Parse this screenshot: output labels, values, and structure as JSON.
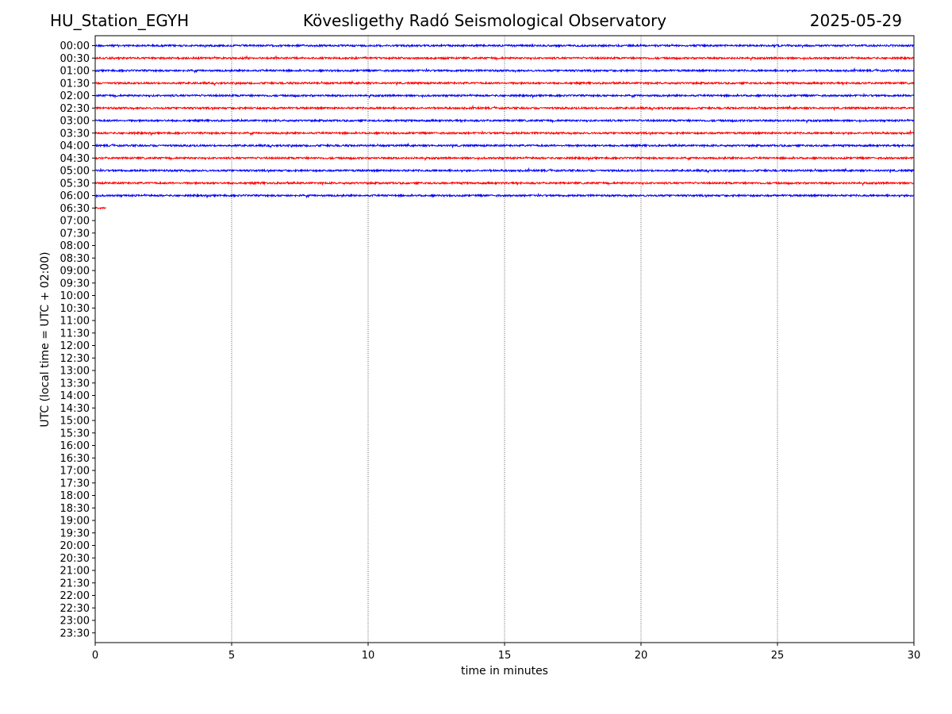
{
  "header": {
    "station": "HU_Station_EGYH",
    "observatory": "Kövesligethy Radó Seismological Observatory",
    "date": "2025-05-29"
  },
  "chart_data": {
    "type": "line",
    "title": "Kövesligethy Radó Seismological Observatory",
    "xlabel": "time in minutes",
    "ylabel": "UTC (local time = UTC + 02:00)",
    "xlim": [
      0,
      30
    ],
    "xticks": [
      0,
      5,
      10,
      15,
      20,
      25,
      30
    ],
    "vertical_gridlines": [
      5,
      10,
      15,
      20,
      25
    ],
    "row_labels": [
      "00:00",
      "00:30",
      "01:00",
      "01:30",
      "02:00",
      "02:30",
      "03:00",
      "03:30",
      "04:00",
      "04:30",
      "05:00",
      "05:30",
      "06:00",
      "06:30",
      "07:00",
      "07:30",
      "08:00",
      "08:30",
      "09:00",
      "09:30",
      "10:00",
      "10:30",
      "11:00",
      "11:30",
      "12:00",
      "12:30",
      "13:00",
      "13:30",
      "14:00",
      "14:30",
      "15:00",
      "15:30",
      "16:00",
      "16:30",
      "17:00",
      "17:30",
      "18:00",
      "18:30",
      "19:00",
      "19:30",
      "20:00",
      "20:30",
      "21:00",
      "21:30",
      "22:00",
      "22:30",
      "23:00",
      "23:30"
    ],
    "trace_colors": [
      "#0000ff",
      "#ff0000"
    ],
    "traces": [
      {
        "row": "00:00",
        "start_min": 0,
        "end_min": 30
      },
      {
        "row": "00:30",
        "start_min": 0,
        "end_min": 30
      },
      {
        "row": "01:00",
        "start_min": 0,
        "end_min": 30
      },
      {
        "row": "01:30",
        "start_min": 0,
        "end_min": 30
      },
      {
        "row": "02:00",
        "start_min": 0,
        "end_min": 30
      },
      {
        "row": "02:30",
        "start_min": 0,
        "end_min": 30
      },
      {
        "row": "03:00",
        "start_min": 0,
        "end_min": 30
      },
      {
        "row": "03:30",
        "start_min": 0,
        "end_min": 30
      },
      {
        "row": "04:00",
        "start_min": 0,
        "end_min": 30
      },
      {
        "row": "04:30",
        "start_min": 0,
        "end_min": 30
      },
      {
        "row": "05:00",
        "start_min": 0,
        "end_min": 30
      },
      {
        "row": "05:30",
        "start_min": 0,
        "end_min": 30
      },
      {
        "row": "06:00",
        "start_min": 0,
        "end_min": 30
      },
      {
        "row": "06:30",
        "start_min": 0,
        "end_min": 0.4
      }
    ]
  }
}
